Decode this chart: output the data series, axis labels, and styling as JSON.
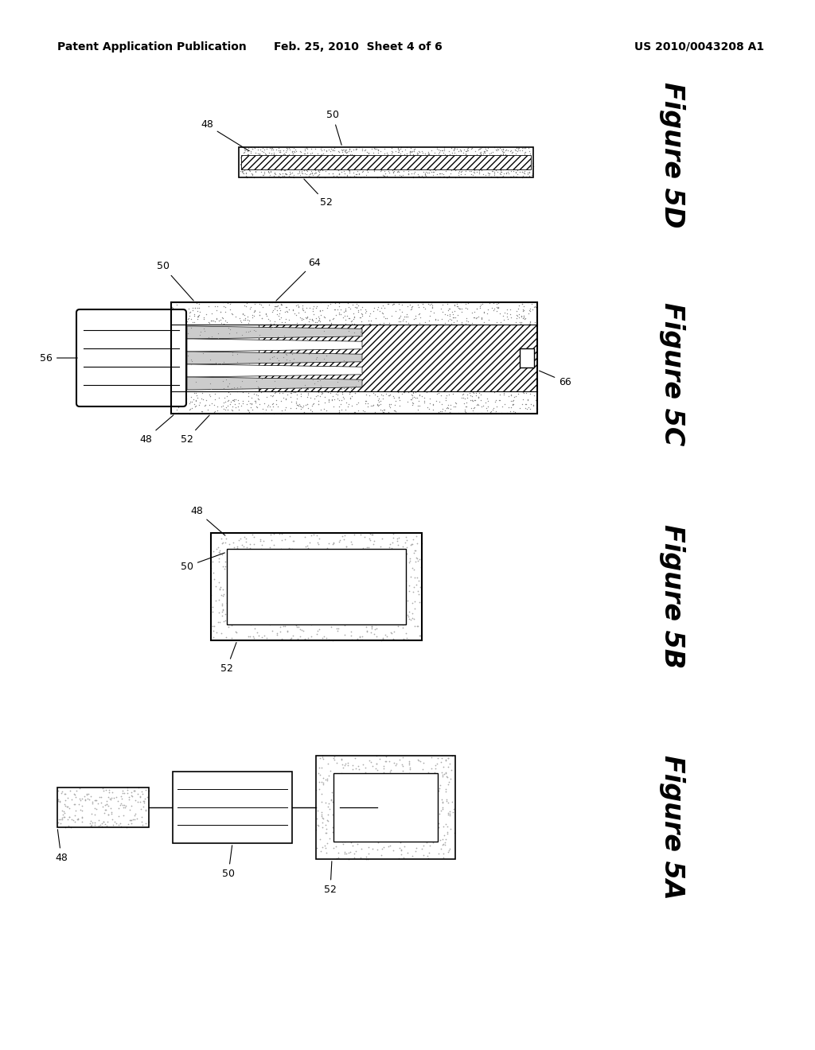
{
  "background_color": "#ffffff",
  "header_left": "Patent Application Publication",
  "header_center": "Feb. 25, 2010  Sheet 4 of 6",
  "header_right": "US 2010/0043208 A1",
  "header_fontsize": 10,
  "figure_label_fontsize": 24,
  "annotation_fontsize": 9
}
